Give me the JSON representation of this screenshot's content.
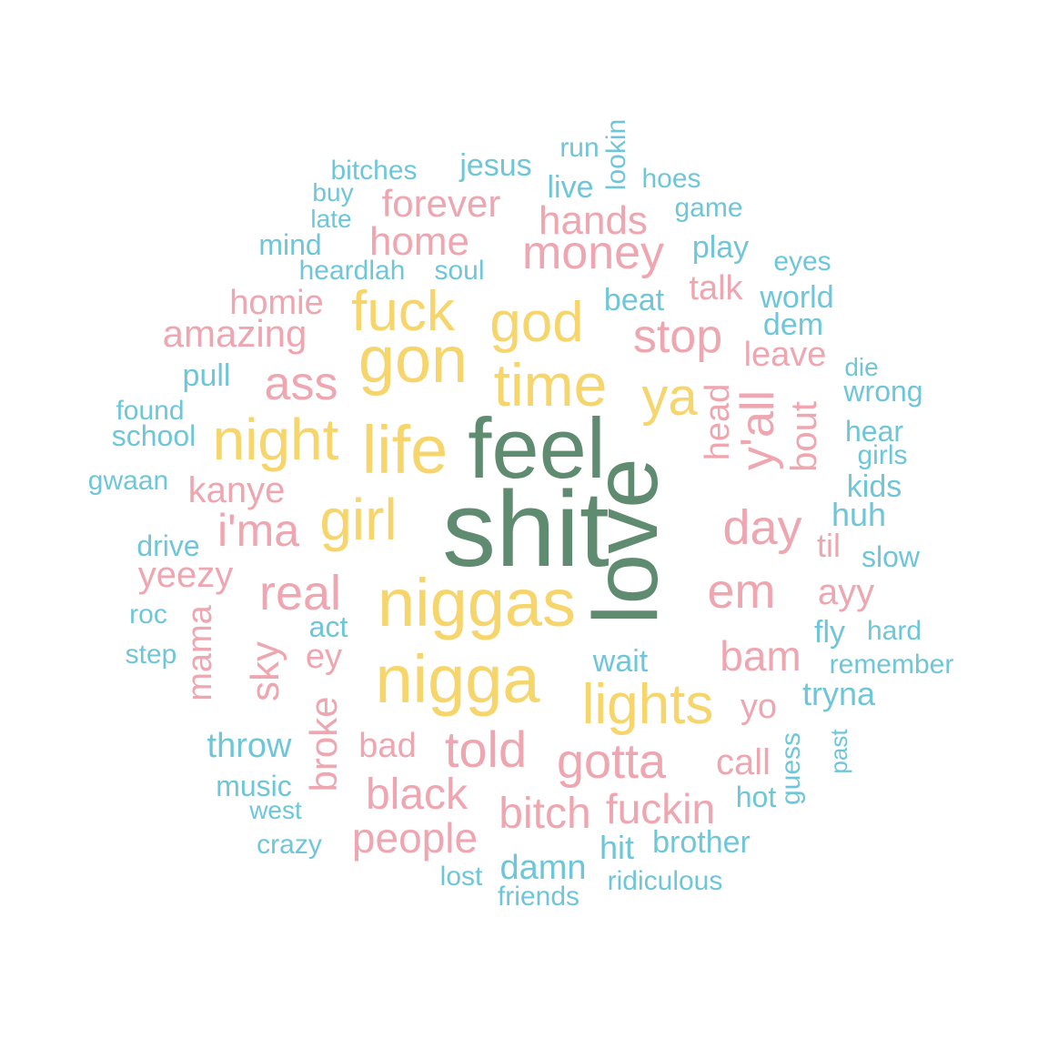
{
  "colors": {
    "teal": "#6fc6d8",
    "pink": "#eea6b0",
    "yellow": "#f6d56c",
    "green": "#5f8c70"
  },
  "words": [
    {
      "text": "shit",
      "color": "green"
    },
    {
      "text": "love",
      "color": "green"
    },
    {
      "text": "feel",
      "color": "green"
    },
    {
      "text": "niggas",
      "color": "yellow"
    },
    {
      "text": "nigga",
      "color": "yellow"
    },
    {
      "text": "life",
      "color": "yellow"
    },
    {
      "text": "gon",
      "color": "yellow"
    },
    {
      "text": "time",
      "color": "yellow"
    },
    {
      "text": "girl",
      "color": "yellow"
    },
    {
      "text": "night",
      "color": "yellow"
    },
    {
      "text": "fuck",
      "color": "yellow"
    },
    {
      "text": "god",
      "color": "yellow"
    },
    {
      "text": "lights",
      "color": "yellow"
    },
    {
      "text": "ya",
      "color": "yellow"
    },
    {
      "text": "y'all",
      "color": "pink"
    },
    {
      "text": "em",
      "color": "pink"
    },
    {
      "text": "money",
      "color": "pink"
    },
    {
      "text": "real",
      "color": "pink"
    },
    {
      "text": "told",
      "color": "pink"
    },
    {
      "text": "gotta",
      "color": "pink"
    },
    {
      "text": "day",
      "color": "pink"
    },
    {
      "text": "i'ma",
      "color": "pink"
    },
    {
      "text": "ass",
      "color": "pink"
    },
    {
      "text": "stop",
      "color": "pink"
    },
    {
      "text": "black",
      "color": "pink"
    },
    {
      "text": "bitch",
      "color": "pink"
    },
    {
      "text": "fuckin",
      "color": "pink"
    },
    {
      "text": "people",
      "color": "pink"
    },
    {
      "text": "bam",
      "color": "pink"
    },
    {
      "text": "home",
      "color": "pink"
    },
    {
      "text": "hands",
      "color": "pink"
    },
    {
      "text": "forever",
      "color": "pink"
    },
    {
      "text": "amazing",
      "color": "pink"
    },
    {
      "text": "kanye",
      "color": "pink"
    },
    {
      "text": "sky",
      "color": "pink"
    },
    {
      "text": "broke",
      "color": "pink"
    },
    {
      "text": "bout",
      "color": "pink"
    },
    {
      "text": "head",
      "color": "pink"
    },
    {
      "text": "call",
      "color": "pink"
    },
    {
      "text": "yeezy",
      "color": "pink"
    },
    {
      "text": "mama",
      "color": "pink"
    },
    {
      "text": "homie",
      "color": "pink"
    },
    {
      "text": "leave",
      "color": "pink"
    },
    {
      "text": "talk",
      "color": "pink"
    },
    {
      "text": "ayy",
      "color": "pink"
    },
    {
      "text": "yo",
      "color": "pink"
    },
    {
      "text": "ey",
      "color": "pink"
    },
    {
      "text": "bad",
      "color": "pink"
    },
    {
      "text": "til",
      "color": "pink"
    },
    {
      "text": "jesus",
      "color": "teal"
    },
    {
      "text": "run",
      "color": "teal"
    },
    {
      "text": "lookin",
      "color": "teal"
    },
    {
      "text": "bitches",
      "color": "teal"
    },
    {
      "text": "hoes",
      "color": "teal"
    },
    {
      "text": "live",
      "color": "teal"
    },
    {
      "text": "buy",
      "color": "teal"
    },
    {
      "text": "game",
      "color": "teal"
    },
    {
      "text": "late",
      "color": "teal"
    },
    {
      "text": "mind",
      "color": "teal"
    },
    {
      "text": "play",
      "color": "teal"
    },
    {
      "text": "eyes",
      "color": "teal"
    },
    {
      "text": "heardlah",
      "color": "teal"
    },
    {
      "text": "soul",
      "color": "teal"
    },
    {
      "text": "beat",
      "color": "teal"
    },
    {
      "text": "world",
      "color": "teal"
    },
    {
      "text": "dem",
      "color": "teal"
    },
    {
      "text": "pull",
      "color": "teal"
    },
    {
      "text": "die",
      "color": "teal"
    },
    {
      "text": "wrong",
      "color": "teal"
    },
    {
      "text": "found",
      "color": "teal"
    },
    {
      "text": "school",
      "color": "teal"
    },
    {
      "text": "hear",
      "color": "teal"
    },
    {
      "text": "girls",
      "color": "teal"
    },
    {
      "text": "gwaan",
      "color": "teal"
    },
    {
      "text": "kids",
      "color": "teal"
    },
    {
      "text": "huh",
      "color": "teal"
    },
    {
      "text": "drive",
      "color": "teal"
    },
    {
      "text": "slow",
      "color": "teal"
    },
    {
      "text": "roc",
      "color": "teal"
    },
    {
      "text": "act",
      "color": "teal"
    },
    {
      "text": "fly",
      "color": "teal"
    },
    {
      "text": "hard",
      "color": "teal"
    },
    {
      "text": "step",
      "color": "teal"
    },
    {
      "text": "wait",
      "color": "teal"
    },
    {
      "text": "remember",
      "color": "teal"
    },
    {
      "text": "tryna",
      "color": "teal"
    },
    {
      "text": "throw",
      "color": "teal"
    },
    {
      "text": "guess",
      "color": "teal"
    },
    {
      "text": "past",
      "color": "teal"
    },
    {
      "text": "music",
      "color": "teal"
    },
    {
      "text": "hot",
      "color": "teal"
    },
    {
      "text": "west",
      "color": "teal"
    },
    {
      "text": "crazy",
      "color": "teal"
    },
    {
      "text": "hit",
      "color": "teal"
    },
    {
      "text": "brother",
      "color": "teal"
    },
    {
      "text": "damn",
      "color": "teal"
    },
    {
      "text": "lost",
      "color": "teal"
    },
    {
      "text": "ridiculous",
      "color": "teal"
    },
    {
      "text": "friends",
      "color": "teal"
    }
  ]
}
